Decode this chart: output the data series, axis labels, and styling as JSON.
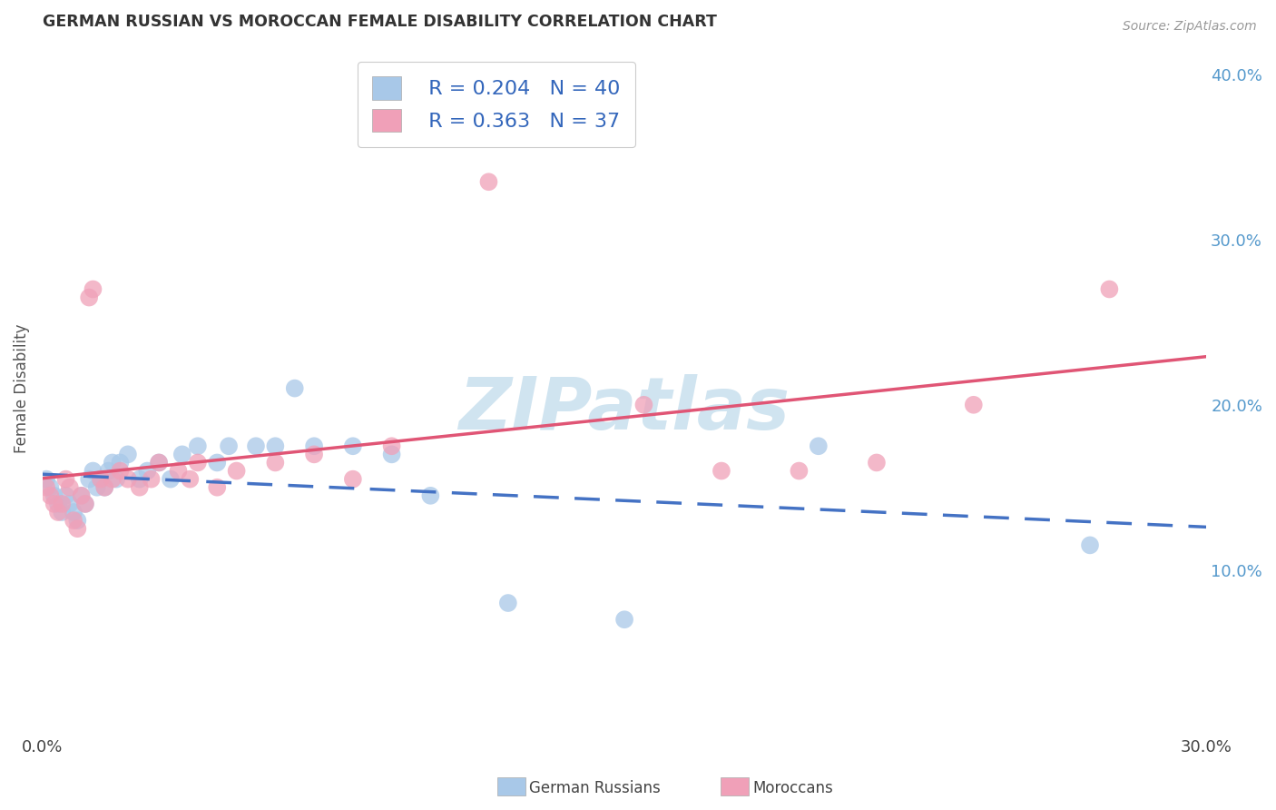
{
  "title": "GERMAN RUSSIAN VS MOROCCAN FEMALE DISABILITY CORRELATION CHART",
  "source": "Source: ZipAtlas.com",
  "ylabel": "Female Disability",
  "xlim": [
    0.0,
    0.3
  ],
  "ylim": [
    0.0,
    0.42
  ],
  "blue_color": "#a8c8e8",
  "pink_color": "#f0a0b8",
  "line_blue": "#4472c4",
  "line_pink": "#e05575",
  "watermark": "ZIPatlas",
  "watermark_color": "#d0e4f0",
  "background": "#ffffff",
  "grid_color": "#cccccc",
  "blue_label": "German Russians",
  "pink_label": "Moroccans",
  "blue_points_x": [
    0.001,
    0.002,
    0.003,
    0.004,
    0.005,
    0.006,
    0.007,
    0.008,
    0.009,
    0.01,
    0.011,
    0.012,
    0.013,
    0.014,
    0.015,
    0.016,
    0.017,
    0.018,
    0.019,
    0.02,
    0.022,
    0.025,
    0.027,
    0.03,
    0.033,
    0.036,
    0.04,
    0.045,
    0.048,
    0.055,
    0.06,
    0.065,
    0.07,
    0.08,
    0.09,
    0.1,
    0.12,
    0.15,
    0.2,
    0.27
  ],
  "blue_points_y": [
    0.155,
    0.15,
    0.145,
    0.14,
    0.135,
    0.145,
    0.14,
    0.135,
    0.13,
    0.145,
    0.14,
    0.155,
    0.16,
    0.15,
    0.155,
    0.15,
    0.16,
    0.165,
    0.155,
    0.165,
    0.17,
    0.155,
    0.16,
    0.165,
    0.155,
    0.17,
    0.175,
    0.165,
    0.175,
    0.175,
    0.175,
    0.21,
    0.175,
    0.175,
    0.17,
    0.145,
    0.08,
    0.07,
    0.175,
    0.115
  ],
  "pink_points_x": [
    0.001,
    0.002,
    0.003,
    0.004,
    0.005,
    0.006,
    0.007,
    0.008,
    0.009,
    0.01,
    0.011,
    0.012,
    0.013,
    0.015,
    0.016,
    0.018,
    0.02,
    0.022,
    0.025,
    0.028,
    0.03,
    0.035,
    0.038,
    0.04,
    0.045,
    0.05,
    0.06,
    0.07,
    0.08,
    0.09,
    0.115,
    0.155,
    0.175,
    0.195,
    0.215,
    0.24,
    0.275
  ],
  "pink_points_y": [
    0.15,
    0.145,
    0.14,
    0.135,
    0.14,
    0.155,
    0.15,
    0.13,
    0.125,
    0.145,
    0.14,
    0.265,
    0.27,
    0.155,
    0.15,
    0.155,
    0.16,
    0.155,
    0.15,
    0.155,
    0.165,
    0.16,
    0.155,
    0.165,
    0.15,
    0.16,
    0.165,
    0.17,
    0.155,
    0.175,
    0.335,
    0.2,
    0.16,
    0.16,
    0.165,
    0.2,
    0.27
  ]
}
